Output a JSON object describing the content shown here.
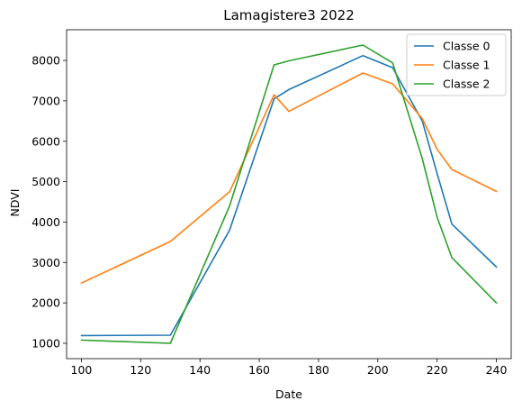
{
  "chart_data": {
    "type": "line",
    "title": "Lamagistere3 2022",
    "xlabel": "Date",
    "ylabel": "NDVI",
    "xlim": [
      95,
      245
    ],
    "ylim": [
      620,
      8760
    ],
    "xticks": [
      100,
      120,
      140,
      160,
      180,
      200,
      220,
      240
    ],
    "yticks": [
      1000,
      2000,
      3000,
      4000,
      5000,
      6000,
      7000,
      8000
    ],
    "grid": false,
    "legend_position": "top-right",
    "series": [
      {
        "name": "Classe 0",
        "color": "#1f77b4",
        "x": [
          100,
          130,
          150,
          165,
          170,
          195,
          205,
          215,
          220,
          225,
          240
        ],
        "y": [
          1190,
          1200,
          3800,
          7050,
          7280,
          8120,
          7820,
          6500,
          5200,
          3950,
          2890
        ]
      },
      {
        "name": "Classe 1",
        "color": "#ff7f0e",
        "x": [
          100,
          130,
          150,
          165,
          170,
          195,
          205,
          215,
          220,
          225,
          240
        ],
        "y": [
          2490,
          3520,
          4750,
          7150,
          6740,
          7690,
          7420,
          6560,
          5800,
          5300,
          4760
        ]
      },
      {
        "name": "Classe 2",
        "color": "#2ca02c",
        "x": [
          100,
          130,
          150,
          165,
          170,
          195,
          205,
          215,
          220,
          225,
          240
        ],
        "y": [
          1080,
          1000,
          4400,
          7890,
          7990,
          8380,
          7940,
          5570,
          4120,
          3120,
          2000
        ]
      }
    ]
  }
}
